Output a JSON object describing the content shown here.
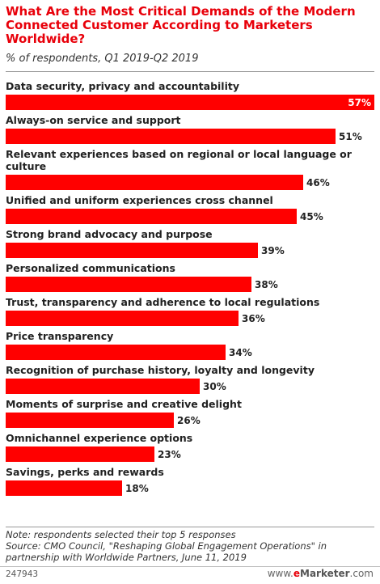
{
  "header": {
    "title": "What Are the Most Critical Demands of the Modern Connected Customer According to Marketers Worldwide?",
    "subtitle": "% of respondents, Q1 2019-Q2 2019"
  },
  "chart_data": {
    "type": "bar",
    "orientation": "horizontal",
    "categories": [
      "Data security, privacy and accountability",
      "Always-on service and support",
      "Relevant experiences based on regional or local language or culture",
      "Unified and uniform experiences cross channel",
      "Strong brand advocacy and purpose",
      "Personalized communications",
      "Trust, transparency and adherence to local regulations",
      "Price transparency",
      "Recognition of purchase history, loyalty and longevity",
      "Moments of surprise and creative delight",
      "Omnichannel experience options",
      "Savings, perks and rewards"
    ],
    "category_label_lines": [
      [
        "Data security, privacy and accountability"
      ],
      [
        "Always-on service and support"
      ],
      [
        "Relevant experiences based on regional or local language or",
        "culture"
      ],
      [
        "Unified and uniform experiences cross channel"
      ],
      [
        "Strong brand advocacy and purpose"
      ],
      [
        "Personalized communications"
      ],
      [
        "Trust, transparency and adherence to local regulations"
      ],
      [
        "Price transparency"
      ],
      [
        "Recognition of purchase history, loyalty and longevity"
      ],
      [
        "Moments of surprise and creative delight"
      ],
      [
        "Omnichannel experience options"
      ],
      [
        "Savings, perks and rewards"
      ]
    ],
    "values": [
      57,
      51,
      46,
      45,
      39,
      38,
      36,
      34,
      30,
      26,
      23,
      18
    ],
    "value_labels": [
      "57%",
      "51%",
      "46%",
      "45%",
      "39%",
      "38%",
      "36%",
      "34%",
      "30%",
      "26%",
      "23%",
      "18%"
    ],
    "unit": "%",
    "xlim": [
      0,
      57
    ],
    "grid": false,
    "legend": "none",
    "bar_color": "#ff0000"
  },
  "footer": {
    "note": "Note: respondents selected their top 5 responses",
    "source_lines": [
      "Source: CMO Council, \"Reshaping Global Engagement Operations\" in",
      "partnership with Worldwide Partners, June 11, 2019"
    ],
    "chart_id": "247943",
    "brand_prefix": "www.",
    "brand_e": "e",
    "brand_rest": "Marketer",
    "brand_suffix": ".com"
  },
  "colors": {
    "title": "#e8000a",
    "bar": "#ff0000"
  }
}
